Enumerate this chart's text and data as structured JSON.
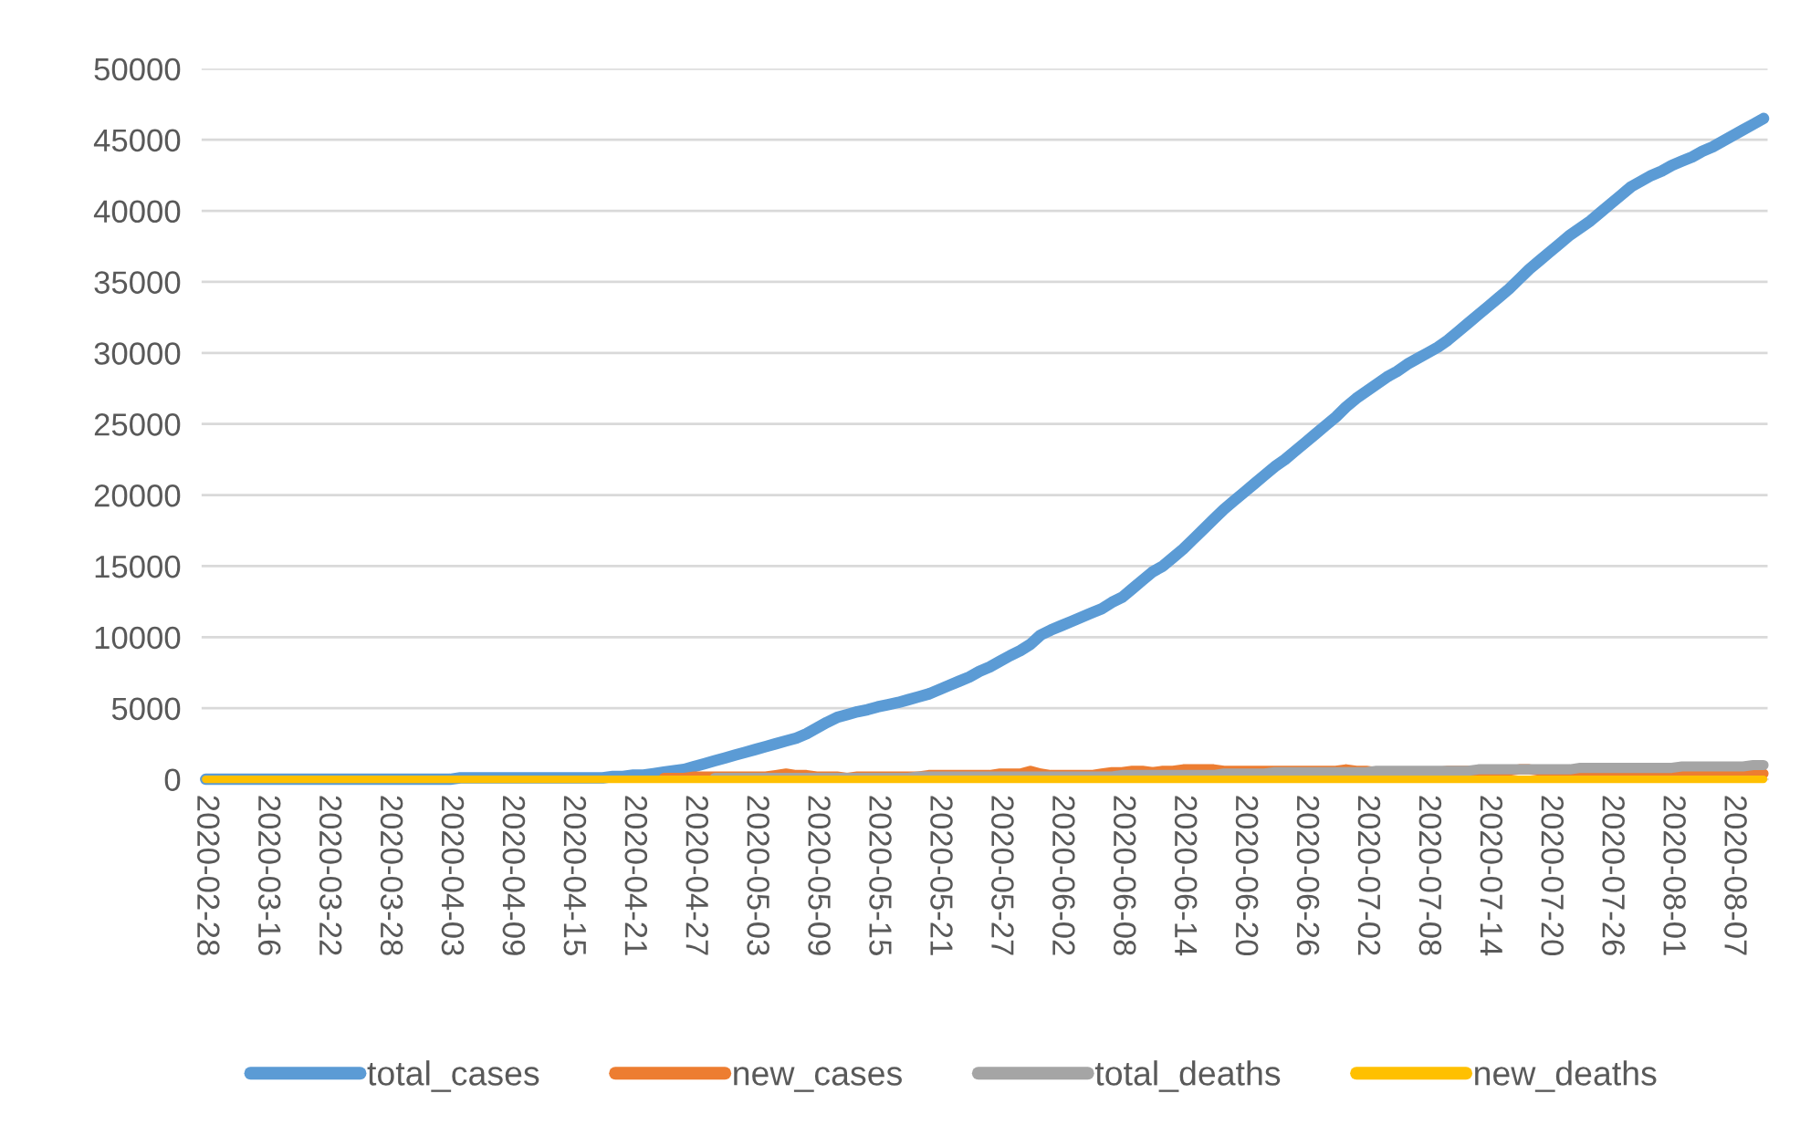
{
  "chart_data": {
    "type": "line",
    "categories": [
      "2020-02-28",
      null,
      null,
      null,
      null,
      null,
      "2020-03-16",
      null,
      null,
      null,
      null,
      null,
      "2020-03-22",
      null,
      null,
      null,
      null,
      null,
      "2020-03-28",
      null,
      null,
      null,
      null,
      null,
      "2020-04-03",
      null,
      null,
      null,
      null,
      null,
      "2020-04-09",
      null,
      null,
      null,
      null,
      null,
      "2020-04-15",
      null,
      null,
      null,
      null,
      null,
      "2020-04-21",
      null,
      null,
      null,
      null,
      null,
      "2020-04-27",
      null,
      null,
      null,
      null,
      null,
      "2020-05-03",
      null,
      null,
      null,
      null,
      null,
      "2020-05-09",
      null,
      null,
      null,
      null,
      null,
      "2020-05-15",
      null,
      null,
      null,
      null,
      null,
      "2020-05-21",
      null,
      null,
      null,
      null,
      null,
      "2020-05-27",
      null,
      null,
      null,
      null,
      null,
      "2020-06-02",
      null,
      null,
      null,
      null,
      null,
      "2020-06-08",
      null,
      null,
      null,
      null,
      null,
      "2020-06-14",
      null,
      null,
      null,
      null,
      null,
      "2020-06-20",
      null,
      null,
      null,
      null,
      null,
      "2020-06-26",
      null,
      null,
      null,
      null,
      null,
      "2020-07-02",
      null,
      null,
      null,
      null,
      null,
      "2020-07-08",
      null,
      null,
      null,
      null,
      null,
      "2020-07-14",
      null,
      null,
      null,
      null,
      null,
      "2020-07-20",
      null,
      null,
      null,
      null,
      null,
      "2020-07-26",
      null,
      null,
      null,
      null,
      null,
      "2020-08-01",
      null,
      null,
      null,
      null,
      null,
      "2020-08-07",
      null,
      null,
      null
    ],
    "series": [
      {
        "name": "total_cases",
        "color": "#5b9bd5",
        "values": [
          0,
          0,
          0,
          0,
          0,
          0,
          0,
          0,
          0,
          0,
          0,
          0,
          0,
          0,
          0,
          0,
          0,
          0,
          0,
          0,
          0,
          0,
          0,
          0,
          0,
          100,
          100,
          100,
          100,
          100,
          100,
          100,
          100,
          100,
          100,
          100,
          100,
          100,
          100,
          100,
          200,
          200,
          300,
          300,
          400,
          500,
          600,
          700,
          900,
          1100,
          1300,
          1500,
          1700,
          1900,
          2100,
          2300,
          2500,
          2700,
          2900,
          3200,
          3600,
          4000,
          4350,
          4550,
          4750,
          4900,
          5100,
          5250,
          5400,
          5600,
          5800,
          6000,
          6300,
          6600,
          6900,
          7200,
          7600,
          7900,
          8300,
          8700,
          9050,
          9500,
          10150,
          10500,
          10800,
          11100,
          11400,
          11700,
          12000,
          12450,
          12800,
          13400,
          14000,
          14600,
          15000,
          15600,
          16200,
          16900,
          17600,
          18300,
          19000,
          19600,
          20200,
          20800,
          21400,
          22000,
          22500,
          23100,
          23700,
          24300,
          24900,
          25500,
          26200,
          26800,
          27300,
          27800,
          28300,
          28700,
          29200,
          29600,
          30000,
          30400,
          30900,
          31500,
          32100,
          32700,
          33300,
          33900,
          34500,
          35200,
          35900,
          36500,
          37100,
          37700,
          38300,
          38800,
          39300,
          39900,
          40500,
          41100,
          41700,
          42100,
          42500,
          42800,
          43200,
          43500,
          43800,
          44200,
          44500,
          44900,
          45300,
          45700,
          46100,
          46500
        ]
      },
      {
        "name": "new_cases",
        "color": "#ed7d31",
        "values": [
          null,
          null,
          null,
          null,
          null,
          null,
          null,
          null,
          null,
          null,
          null,
          null,
          null,
          null,
          null,
          null,
          null,
          null,
          null,
          null,
          null,
          null,
          null,
          null,
          null,
          null,
          null,
          null,
          null,
          null,
          null,
          null,
          null,
          null,
          null,
          null,
          null,
          null,
          null,
          null,
          null,
          null,
          null,
          null,
          null,
          100,
          100,
          100,
          200,
          200,
          200,
          200,
          200,
          200,
          200,
          200,
          300,
          400,
          300,
          300,
          200,
          200,
          200,
          100,
          200,
          200,
          200,
          200,
          200,
          200,
          200,
          300,
          300,
          300,
          300,
          300,
          300,
          300,
          400,
          400,
          400,
          600,
          400,
          300,
          300,
          300,
          300,
          300,
          400,
          500,
          500,
          600,
          600,
          500,
          600,
          600,
          700,
          700,
          700,
          700,
          600,
          600,
          600,
          600,
          600,
          600,
          600,
          600,
          600,
          600,
          600,
          600,
          700,
          600,
          600,
          500,
          500,
          500,
          400,
          400,
          400,
          500,
          600,
          600,
          600,
          600,
          600,
          600,
          600,
          700,
          700,
          600,
          600,
          600,
          600,
          500,
          600,
          600,
          600,
          600,
          400,
          400,
          300,
          400,
          300,
          300,
          400,
          400,
          400,
          400,
          400,
          400,
          400,
          400
        ]
      },
      {
        "name": "total_deaths",
        "color": "#a5a5a5",
        "values": [
          null,
          null,
          null,
          null,
          null,
          null,
          null,
          null,
          null,
          null,
          null,
          null,
          null,
          null,
          null,
          null,
          null,
          null,
          null,
          null,
          null,
          null,
          null,
          null,
          null,
          null,
          null,
          null,
          null,
          null,
          null,
          null,
          null,
          null,
          null,
          null,
          null,
          null,
          null,
          null,
          null,
          null,
          null,
          null,
          null,
          null,
          null,
          null,
          null,
          null,
          100,
          100,
          100,
          100,
          100,
          100,
          100,
          100,
          100,
          100,
          100,
          100,
          100,
          100,
          100,
          100,
          100,
          100,
          100,
          100,
          200,
          200,
          200,
          200,
          200,
          200,
          200,
          200,
          200,
          200,
          200,
          200,
          200,
          200,
          200,
          200,
          200,
          200,
          200,
          200,
          300,
          300,
          300,
          300,
          300,
          300,
          300,
          300,
          300,
          300,
          400,
          400,
          400,
          400,
          400,
          500,
          500,
          500,
          500,
          500,
          500,
          500,
          500,
          500,
          500,
          600,
          600,
          600,
          600,
          600,
          600,
          600,
          600,
          600,
          600,
          700,
          700,
          700,
          700,
          700,
          700,
          700,
          700,
          700,
          700,
          800,
          800,
          800,
          800,
          800,
          800,
          800,
          800,
          800,
          800,
          900,
          900,
          900,
          900,
          900,
          900,
          900,
          1000,
          1000
        ]
      },
      {
        "name": "new_deaths",
        "color": "#ffc000",
        "values": [
          0,
          0,
          0,
          0,
          0,
          0,
          0,
          0,
          0,
          0,
          0,
          0,
          0,
          0,
          0,
          0,
          0,
          0,
          0,
          0,
          0,
          0,
          0,
          0,
          0,
          0,
          0,
          0,
          0,
          0,
          0,
          0,
          0,
          0,
          0,
          0,
          0,
          0,
          0,
          0,
          0,
          0,
          0,
          0,
          0,
          0,
          0,
          0,
          0,
          0,
          0,
          0,
          0,
          0,
          0,
          0,
          0,
          0,
          0,
          0,
          0,
          0,
          0,
          0,
          0,
          0,
          0,
          0,
          0,
          0,
          0,
          0,
          0,
          0,
          0,
          0,
          0,
          0,
          0,
          0,
          0,
          0,
          0,
          0,
          0,
          0,
          0,
          0,
          0,
          0,
          0,
          0,
          0,
          0,
          0,
          0,
          0,
          0,
          0,
          0,
          0,
          0,
          0,
          0,
          0,
          0,
          0,
          0,
          0,
          0,
          0,
          0,
          0,
          0,
          0,
          0,
          0,
          0,
          0,
          0,
          0,
          0,
          0,
          0,
          0,
          0,
          0,
          0,
          0,
          0,
          0,
          0,
          0,
          0,
          0,
          0,
          0,
          0,
          0,
          0,
          0,
          0,
          0,
          0,
          0,
          0,
          0,
          0,
          0,
          0,
          0,
          0,
          0,
          0
        ]
      }
    ],
    "ylim": [
      0,
      50000
    ],
    "yticks": [
      0,
      5000,
      10000,
      15000,
      20000,
      25000,
      30000,
      35000,
      40000,
      45000,
      50000
    ],
    "grid": "y",
    "legend": "bottom",
    "marker": "none",
    "line_style": "solid"
  }
}
